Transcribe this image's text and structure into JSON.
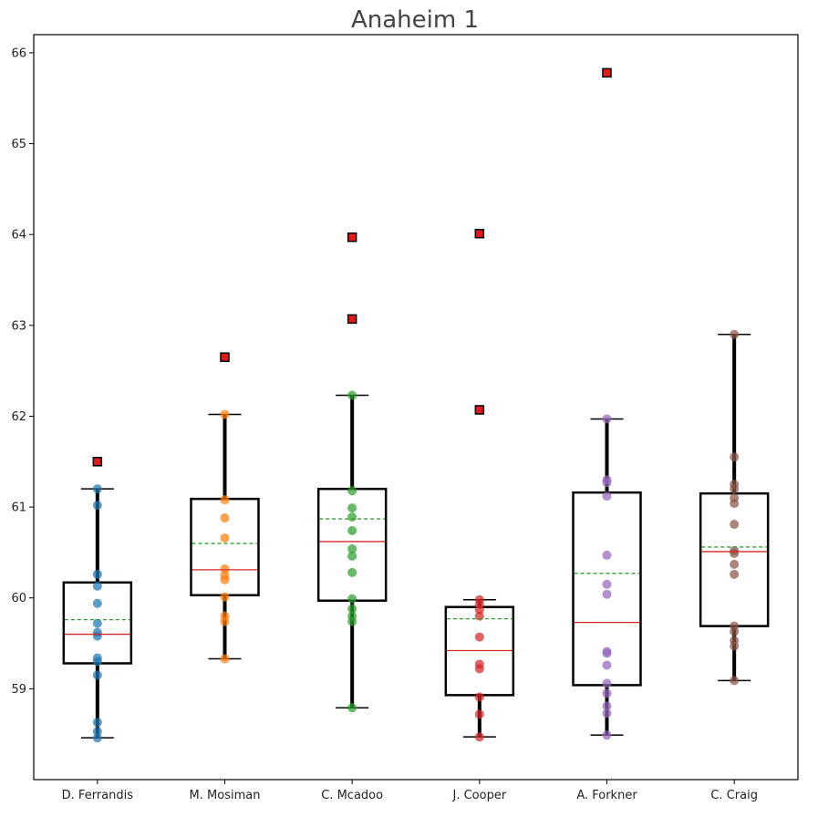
{
  "chart_data": {
    "type": "box",
    "title": "Anaheim 1",
    "xlabel": "",
    "ylabel": "",
    "categories": [
      "D. Ferrandis",
      "M. Mosiman",
      "C. Mcadoo",
      "J. Cooper",
      "A. Forkner",
      "C. Craig"
    ],
    "ylim": [
      58.0,
      66.2
    ],
    "yticks": [
      59,
      60,
      61,
      62,
      63,
      64,
      65,
      66
    ],
    "grid": false,
    "colors": {
      "box": "#000000",
      "median": "#d62728",
      "mean": "#2ca02c",
      "outlier_fill": "#e31a1c",
      "outlier_edge": "#000000",
      "points": [
        "#1f77b4",
        "#ff7f0e",
        "#2ca02c",
        "#d62728",
        "#9467bd",
        "#8c564b"
      ]
    },
    "boxes": [
      {
        "name": "D. Ferrandis",
        "whisker_low": 58.46,
        "q1": 59.28,
        "median": 59.6,
        "mean": 59.76,
        "q3": 60.17,
        "whisker_high": 61.2,
        "points": [
          58.46,
          58.53,
          58.63,
          59.15,
          59.3,
          59.34,
          59.58,
          59.62,
          59.72,
          59.94,
          60.13,
          60.26,
          61.02,
          61.2
        ],
        "outliers": [
          61.5
        ]
      },
      {
        "name": "M. Mosiman",
        "whisker_low": 59.33,
        "q1": 60.03,
        "median": 60.31,
        "mean": 60.6,
        "q3": 61.09,
        "whisker_high": 62.02,
        "points": [
          59.33,
          59.74,
          59.8,
          60.01,
          60.2,
          60.25,
          60.32,
          60.66,
          60.88,
          61.08,
          62.02
        ],
        "outliers": [
          62.65
        ]
      },
      {
        "name": "C. Mcadoo",
        "whisker_low": 58.79,
        "q1": 59.97,
        "median": 60.62,
        "mean": 60.87,
        "q3": 61.2,
        "whisker_high": 62.23,
        "points": [
          58.79,
          59.74,
          59.8,
          59.88,
          59.99,
          60.28,
          60.46,
          60.54,
          60.74,
          60.89,
          60.99,
          61.18,
          62.23
        ],
        "outliers": [
          63.07,
          63.97
        ]
      },
      {
        "name": "J. Cooper",
        "whisker_low": 58.47,
        "q1": 58.93,
        "median": 59.42,
        "mean": 59.77,
        "q3": 59.9,
        "whisker_high": 59.98,
        "points": [
          58.47,
          58.72,
          58.91,
          59.22,
          59.27,
          59.57,
          59.8,
          59.87,
          59.93,
          59.98
        ],
        "outliers": [
          62.07,
          64.01
        ]
      },
      {
        "name": "A. Forkner",
        "whisker_low": 58.49,
        "q1": 59.04,
        "median": 59.73,
        "mean": 60.27,
        "q3": 61.16,
        "whisker_high": 61.97,
        "points": [
          58.49,
          58.73,
          58.81,
          58.95,
          59.06,
          59.26,
          59.39,
          59.41,
          60.04,
          60.15,
          60.47,
          61.12,
          61.27,
          61.3,
          61.97
        ],
        "outliers": [
          65.78
        ]
      },
      {
        "name": "C. Craig",
        "whisker_low": 59.09,
        "q1": 59.69,
        "median": 60.51,
        "mean": 60.56,
        "q3": 61.15,
        "whisker_high": 62.9,
        "points": [
          59.09,
          59.47,
          59.53,
          59.63,
          59.69,
          60.26,
          60.37,
          60.49,
          60.52,
          60.81,
          61.04,
          61.1,
          61.2,
          61.25,
          61.55,
          62.9
        ],
        "outliers": []
      }
    ]
  }
}
